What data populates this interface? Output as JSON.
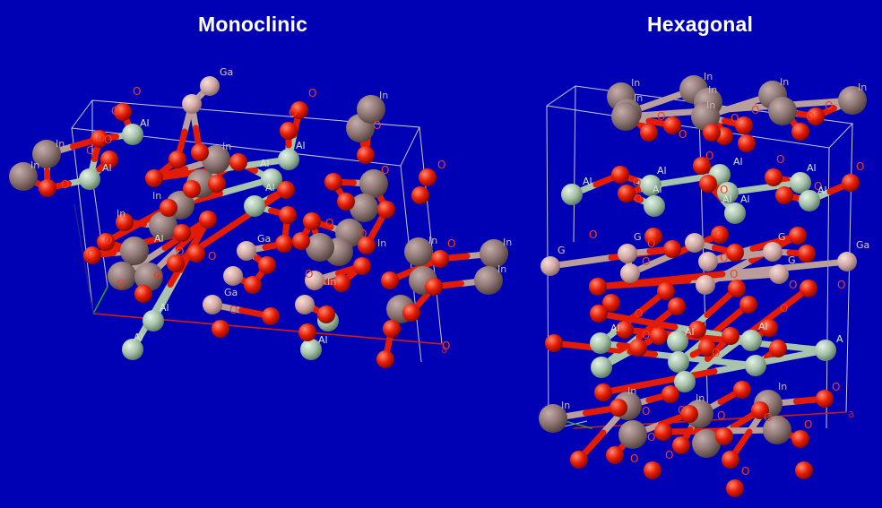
{
  "titles": {
    "left": "Monoclinic",
    "right": "Hexagonal"
  },
  "colors": {
    "background": "#0000b4",
    "In": "#8e7674",
    "Ga": "#d7b0ad",
    "Al": "#a9c4ae",
    "O": "#e81e05",
    "label_In": "#c9b8b8",
    "label_Ga": "#e0c7c4",
    "label_Al": "#d8e7da",
    "label_O": "#ff3a1a",
    "cell_edges": "#c8c8d8",
    "axis_a": "#cc1d12",
    "axis_b": "#28a028",
    "axis_c": "#1e1e96"
  },
  "element_labels": {
    "In": "In",
    "Ga": "Ga",
    "Al": "Al",
    "O": "O"
  },
  "axis_label": "a",
  "labels": {
    "monoclinic": [
      {
        "t": "Ga"
      },
      {
        "t": "O"
      },
      {
        "t": "O"
      },
      {
        "t": "O"
      },
      {
        "t": "Al"
      },
      {
        "t": "In"
      },
      {
        "t": "In"
      },
      {
        "t": "O"
      },
      {
        "t": "O"
      },
      {
        "t": "O"
      },
      {
        "t": "Al"
      },
      {
        "t": "Al"
      },
      {
        "t": "Al"
      },
      {
        "t": "Al"
      },
      {
        "t": "In"
      },
      {
        "t": "O"
      },
      {
        "t": "O"
      },
      {
        "t": "O"
      },
      {
        "t": "In"
      },
      {
        "t": "O"
      },
      {
        "t": "O"
      },
      {
        "t": "In"
      },
      {
        "t": "In"
      },
      {
        "t": "Al"
      },
      {
        "t": "Ga"
      },
      {
        "t": "O"
      },
      {
        "t": "Ga"
      },
      {
        "t": "O"
      },
      {
        "t": "O"
      },
      {
        "t": "In"
      },
      {
        "t": "O"
      },
      {
        "t": "In"
      },
      {
        "t": "O"
      },
      {
        "t": "In"
      },
      {
        "t": "In"
      },
      {
        "t": "Al"
      },
      {
        "t": "Al"
      },
      {
        "t": "Al"
      },
      {
        "t": "O"
      },
      {
        "t": "O"
      },
      {
        "t": "O"
      },
      {
        "t": "O"
      },
      {
        "t": "O"
      },
      {
        "t": "In"
      },
      {
        "t": "O"
      },
      {
        "t": "O"
      }
    ],
    "hexagonal": [
      {
        "t": "In"
      },
      {
        "t": "In"
      },
      {
        "t": "In"
      },
      {
        "t": "In"
      },
      {
        "t": "In"
      },
      {
        "t": "In"
      },
      {
        "t": "In"
      },
      {
        "t": "O"
      },
      {
        "t": "O"
      },
      {
        "t": "O"
      },
      {
        "t": "O"
      },
      {
        "t": "O"
      },
      {
        "t": "O"
      },
      {
        "t": "O"
      },
      {
        "t": "Al"
      },
      {
        "t": "Al"
      },
      {
        "t": "Al"
      },
      {
        "t": "Al"
      },
      {
        "t": "Al"
      },
      {
        "t": "O"
      },
      {
        "t": "O"
      },
      {
        "t": "O"
      },
      {
        "t": "O"
      },
      {
        "t": "O"
      },
      {
        "t": "O"
      },
      {
        "t": "Al"
      },
      {
        "t": "Al"
      },
      {
        "t": "Al"
      },
      {
        "t": "O"
      },
      {
        "t": "O"
      },
      {
        "t": "G"
      },
      {
        "t": "G"
      },
      {
        "t": "G"
      },
      {
        "t": "G"
      },
      {
        "t": "Ga"
      },
      {
        "t": "O"
      },
      {
        "t": "O"
      },
      {
        "t": "O"
      },
      {
        "t": "O"
      },
      {
        "t": "O"
      },
      {
        "t": "O"
      },
      {
        "t": "O"
      },
      {
        "t": "Al"
      },
      {
        "t": "Al"
      },
      {
        "t": "Al"
      },
      {
        "t": "A"
      },
      {
        "t": "O"
      },
      {
        "t": "O"
      },
      {
        "t": "O"
      },
      {
        "t": "In"
      },
      {
        "t": "In"
      },
      {
        "t": "In"
      },
      {
        "t": "In"
      },
      {
        "t": "O"
      },
      {
        "t": "O"
      },
      {
        "t": "O"
      },
      {
        "t": "O"
      },
      {
        "t": "O"
      },
      {
        "t": "O"
      },
      {
        "t": "O"
      },
      {
        "t": "O"
      },
      {
        "t": "O"
      },
      {
        "t": "O"
      }
    ]
  }
}
